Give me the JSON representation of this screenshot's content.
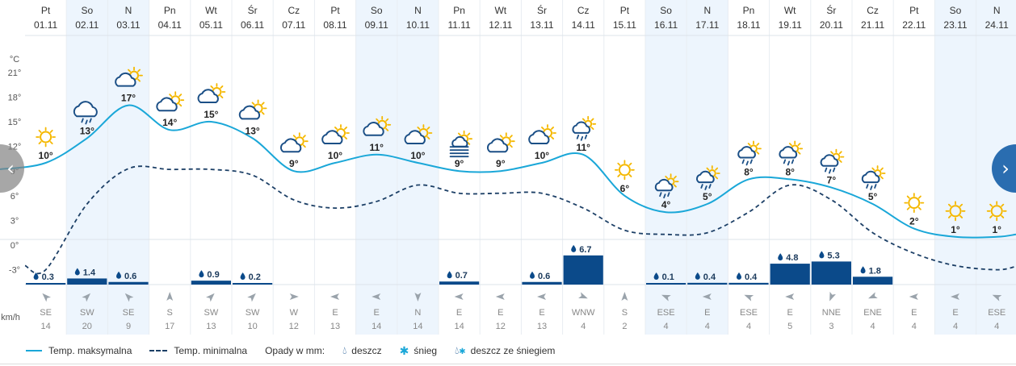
{
  "chart_data": {
    "type": "line",
    "title": "",
    "temp_unit": "°C",
    "wind_unit": "km/h",
    "y_ticks": [
      "21°",
      "18°",
      "15°",
      "12°",
      "9°",
      "6°",
      "3°",
      "0°",
      "-3°"
    ],
    "days": [
      {
        "dow": "Pt",
        "date": "01.11",
        "tmax": 10,
        "tmax_label": "10°",
        "tmin": -3,
        "icon": "sun",
        "weekend": false,
        "precip": 0.3,
        "precip_label": "0.3",
        "wind_dir": "SE",
        "wind_deg": 135,
        "wind_speed": "14"
      },
      {
        "dow": "So",
        "date": "02.11",
        "tmax": 13,
        "tmax_label": "13°",
        "tmin": 5,
        "icon": "rain-cloud",
        "weekend": true,
        "precip": 1.4,
        "precip_label": "1.4",
        "wind_dir": "SW",
        "wind_deg": 225,
        "wind_speed": "20"
      },
      {
        "dow": "N",
        "date": "03.11",
        "tmax": 17,
        "tmax_label": "17°",
        "tmin": 9.3,
        "icon": "partly-cloudy",
        "weekend": true,
        "precip": 0.6,
        "precip_label": "0.6",
        "wind_dir": "SE",
        "wind_deg": 135,
        "wind_speed": "9"
      },
      {
        "dow": "Pn",
        "date": "04.11",
        "tmax": 14,
        "tmax_label": "14°",
        "tmin": 9.2,
        "icon": "partly-cloudy",
        "weekend": false,
        "precip": 0,
        "precip_label": "",
        "wind_dir": "S",
        "wind_deg": 180,
        "wind_speed": "17"
      },
      {
        "dow": "Wt",
        "date": "05.11",
        "tmax": 15,
        "tmax_label": "15°",
        "tmin": 9.2,
        "icon": "partly-cloudy",
        "weekend": false,
        "precip": 0.9,
        "precip_label": "0.9",
        "wind_dir": "SW",
        "wind_deg": 225,
        "wind_speed": "13"
      },
      {
        "dow": "Śr",
        "date": "06.11",
        "tmax": 13,
        "tmax_label": "13°",
        "tmin": 8.5,
        "icon": "partly-cloudy",
        "weekend": false,
        "precip": 0.2,
        "precip_label": "0.2",
        "wind_dir": "SW",
        "wind_deg": 225,
        "wind_speed": "10"
      },
      {
        "dow": "Cz",
        "date": "07.11",
        "tmax": 9,
        "tmax_label": "9°",
        "tmin": 5.5,
        "icon": "partly-cloudy",
        "weekend": false,
        "precip": 0,
        "precip_label": "",
        "wind_dir": "W",
        "wind_deg": 270,
        "wind_speed": "12"
      },
      {
        "dow": "Pt",
        "date": "08.11",
        "tmax": 10,
        "tmax_label": "10°",
        "tmin": 4.5,
        "icon": "partly-cloudy",
        "weekend": false,
        "precip": 0,
        "precip_label": "",
        "wind_dir": "E",
        "wind_deg": 90,
        "wind_speed": "13"
      },
      {
        "dow": "So",
        "date": "09.11",
        "tmax": 11,
        "tmax_label": "11°",
        "tmin": 5.3,
        "icon": "partly-cloudy",
        "weekend": true,
        "precip": 0,
        "precip_label": "",
        "wind_dir": "E",
        "wind_deg": 90,
        "wind_speed": "14"
      },
      {
        "dow": "N",
        "date": "10.11",
        "tmax": 10,
        "tmax_label": "10°",
        "tmin": 7.3,
        "icon": "partly-cloudy",
        "weekend": true,
        "precip": 0,
        "precip_label": "",
        "wind_dir": "N",
        "wind_deg": 0,
        "wind_speed": "14"
      },
      {
        "dow": "Pn",
        "date": "11.11",
        "tmax": 9,
        "tmax_label": "9°",
        "tmin": 6.3,
        "icon": "fog",
        "weekend": false,
        "precip": 0.7,
        "precip_label": "0.7",
        "wind_dir": "E",
        "wind_deg": 90,
        "wind_speed": "14"
      },
      {
        "dow": "Wt",
        "date": "12.11",
        "tmax": 9,
        "tmax_label": "9°",
        "tmin": 6.3,
        "icon": "partly-cloudy",
        "weekend": false,
        "precip": 0,
        "precip_label": "",
        "wind_dir": "E",
        "wind_deg": 90,
        "wind_speed": "12"
      },
      {
        "dow": "Śr",
        "date": "13.11",
        "tmax": 10,
        "tmax_label": "10°",
        "tmin": 6.3,
        "icon": "partly-cloudy",
        "weekend": false,
        "precip": 0.6,
        "precip_label": "0.6",
        "wind_dir": "E",
        "wind_deg": 90,
        "wind_speed": "13"
      },
      {
        "dow": "Cz",
        "date": "14.11",
        "tmax": 11,
        "tmax_label": "11°",
        "tmin": 4.5,
        "icon": "rain-sun",
        "weekend": false,
        "precip": 6.7,
        "precip_label": "6.7",
        "wind_dir": "WNW",
        "wind_deg": 292,
        "wind_speed": "4"
      },
      {
        "dow": "Pt",
        "date": "15.11",
        "tmax": 6,
        "tmax_label": "6°",
        "tmin": 1.8,
        "icon": "sun",
        "weekend": false,
        "precip": 0,
        "precip_label": "",
        "wind_dir": "S",
        "wind_deg": 180,
        "wind_speed": "2"
      },
      {
        "dow": "So",
        "date": "16.11",
        "tmax": 4,
        "tmax_label": "4°",
        "tmin": 1.3,
        "icon": "rain-sun",
        "weekend": true,
        "precip": 0.1,
        "precip_label": "0.1",
        "wind_dir": "ESE",
        "wind_deg": 112,
        "wind_speed": "4"
      },
      {
        "dow": "N",
        "date": "17.11",
        "tmax": 5,
        "tmax_label": "5°",
        "tmin": 1.5,
        "icon": "rain-sun",
        "weekend": true,
        "precip": 0.4,
        "precip_label": "0.4",
        "wind_dir": "E",
        "wind_deg": 90,
        "wind_speed": "4"
      },
      {
        "dow": "Pn",
        "date": "18.11",
        "tmax": 8,
        "tmax_label": "8°",
        "tmin": 4,
        "icon": "rain-sun",
        "weekend": false,
        "precip": 0.4,
        "precip_label": "0.4",
        "wind_dir": "ESE",
        "wind_deg": 112,
        "wind_speed": "4"
      },
      {
        "dow": "Wt",
        "date": "19.11",
        "tmax": 8,
        "tmax_label": "8°",
        "tmin": 7.3,
        "icon": "rain-sun",
        "weekend": false,
        "precip": 4.8,
        "precip_label": "4.8",
        "wind_dir": "E",
        "wind_deg": 90,
        "wind_speed": "5"
      },
      {
        "dow": "Śr",
        "date": "20.11",
        "tmax": 7,
        "tmax_label": "7°",
        "tmin": 5.5,
        "icon": "rain-sun",
        "weekend": false,
        "precip": 5.3,
        "precip_label": "5.3",
        "wind_dir": "NNE",
        "wind_deg": 22,
        "wind_speed": "3"
      },
      {
        "dow": "Cz",
        "date": "21.11",
        "tmax": 5,
        "tmax_label": "5°",
        "tmin": 1.5,
        "icon": "rain-sun",
        "weekend": false,
        "precip": 1.8,
        "precip_label": "1.8",
        "wind_dir": "ENE",
        "wind_deg": 68,
        "wind_speed": "4"
      },
      {
        "dow": "Pt",
        "date": "22.11",
        "tmax": 2,
        "tmax_label": "2°",
        "tmin": -1,
        "icon": "sun",
        "weekend": false,
        "precip": 0,
        "precip_label": "",
        "wind_dir": "E",
        "wind_deg": 90,
        "wind_speed": "4"
      },
      {
        "dow": "So",
        "date": "23.11",
        "tmax": 1,
        "tmax_label": "1°",
        "tmin": -2.5,
        "icon": "sun",
        "weekend": true,
        "precip": 0,
        "precip_label": "",
        "wind_dir": "E",
        "wind_deg": 90,
        "wind_speed": "4"
      },
      {
        "dow": "N",
        "date": "24.11",
        "tmax": 1,
        "tmax_label": "1°",
        "tmin": -3,
        "icon": "sun",
        "weekend": true,
        "precip": 0,
        "precip_label": "",
        "wind_dir": "ESE",
        "wind_deg": 112,
        "wind_speed": "4"
      }
    ]
  },
  "legend": {
    "tmax_label": "Temp. maksymalna",
    "tmin_label": "Temp. minimalna",
    "precip_title": "Opady w mm:",
    "rain_label": "deszcz",
    "snow_label": "śnieg",
    "sleet_label": "deszcz ze śniegiem"
  },
  "nav": {
    "prev_glyph": "‹",
    "next_glyph": "›"
  },
  "colors": {
    "tmax_line": "#1aa7d8",
    "tmin_line": "#1c3f66",
    "precip_bar": "#0b4a8a",
    "weekend_bg": "#edf5fd",
    "sun": "#f5b800",
    "cloud": "#1b4f86"
  }
}
